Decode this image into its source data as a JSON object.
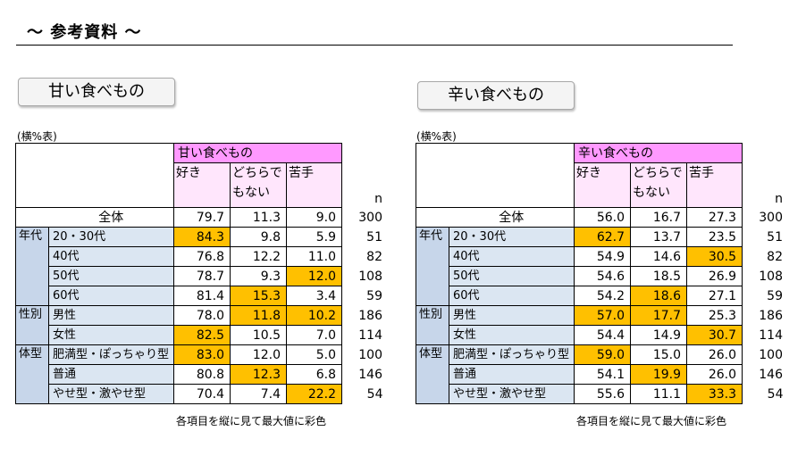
{
  "page": {
    "title": "〜 参考資料 〜",
    "note_label": "(横%表)",
    "caption": "各項目を縦に見て最大値に彩色",
    "n_label": "n"
  },
  "tables": [
    {
      "button": "甘い食べもの",
      "header": "甘い食べもの",
      "col1": "好き",
      "col2": "どちらで",
      "col2b": "もない",
      "col3": "苦手",
      "total": {
        "label": "全体",
        "v1": "79.7",
        "v2": "11.3",
        "v3": "9.0",
        "n": "300"
      },
      "groups": [
        {
          "label": "年代",
          "rows": [
            {
              "label": "20・30代",
              "v1": "84.3",
              "v2": "9.8",
              "v3": "5.9",
              "n": "51",
              "hl": [
                1
              ]
            },
            {
              "label": "40代",
              "v1": "76.8",
              "v2": "12.2",
              "v3": "11.0",
              "n": "82",
              "hl": []
            },
            {
              "label": "50代",
              "v1": "78.7",
              "v2": "9.3",
              "v3": "12.0",
              "n": "108",
              "hl": [
                3
              ]
            },
            {
              "label": "60代",
              "v1": "81.4",
              "v2": "15.3",
              "v3": "3.4",
              "n": "59",
              "hl": [
                2
              ]
            }
          ]
        },
        {
          "label": "性別",
          "rows": [
            {
              "label": "男性",
              "v1": "78.0",
              "v2": "11.8",
              "v3": "10.2",
              "n": "186",
              "hl": [
                2,
                3
              ]
            },
            {
              "label": "女性",
              "v1": "82.5",
              "v2": "10.5",
              "v3": "7.0",
              "n": "114",
              "hl": [
                1
              ]
            }
          ]
        },
        {
          "label": "体型",
          "rows": [
            {
              "label": "肥満型・ぽっちゃり型",
              "v1": "83.0",
              "v2": "12.0",
              "v3": "5.0",
              "n": "100",
              "hl": [
                1
              ]
            },
            {
              "label": "普通",
              "v1": "80.8",
              "v2": "12.3",
              "v3": "6.8",
              "n": "146",
              "hl": [
                2
              ]
            },
            {
              "label": "やせ型・激やせ型",
              "v1": "70.4",
              "v2": "7.4",
              "v3": "22.2",
              "n": "54",
              "hl": [
                3
              ]
            }
          ]
        }
      ]
    },
    {
      "button": "辛い食べもの",
      "header": "辛い食べもの",
      "col1": "好き",
      "col2": "どちらで",
      "col2b": "もない",
      "col3": "苦手",
      "total": {
        "label": "全体",
        "v1": "56.0",
        "v2": "16.7",
        "v3": "27.3",
        "n": "300"
      },
      "groups": [
        {
          "label": "年代",
          "rows": [
            {
              "label": "20・30代",
              "v1": "62.7",
              "v2": "13.7",
              "v3": "23.5",
              "n": "51",
              "hl": [
                1
              ]
            },
            {
              "label": "40代",
              "v1": "54.9",
              "v2": "14.6",
              "v3": "30.5",
              "n": "82",
              "hl": [
                3
              ]
            },
            {
              "label": "50代",
              "v1": "54.6",
              "v2": "18.5",
              "v3": "26.9",
              "n": "108",
              "hl": []
            },
            {
              "label": "60代",
              "v1": "54.2",
              "v2": "18.6",
              "v3": "27.1",
              "n": "59",
              "hl": [
                2
              ]
            }
          ]
        },
        {
          "label": "性別",
          "rows": [
            {
              "label": "男性",
              "v1": "57.0",
              "v2": "17.7",
              "v3": "25.3",
              "n": "186",
              "hl": [
                1,
                2
              ]
            },
            {
              "label": "女性",
              "v1": "54.4",
              "v2": "14.9",
              "v3": "30.7",
              "n": "114",
              "hl": [
                3
              ]
            }
          ]
        },
        {
          "label": "体型",
          "rows": [
            {
              "label": "肥満型・ぽっちゃり型",
              "v1": "59.0",
              "v2": "15.0",
              "v3": "26.0",
              "n": "100",
              "hl": [
                1
              ]
            },
            {
              "label": "普通",
              "v1": "54.1",
              "v2": "19.9",
              "v3": "26.0",
              "n": "146",
              "hl": [
                2
              ]
            },
            {
              "label": "やせ型・激やせ型",
              "v1": "55.6",
              "v2": "11.1",
              "v3": "33.3",
              "n": "54",
              "hl": [
                3
              ]
            }
          ]
        }
      ]
    }
  ],
  "colors": {
    "highlight": "#ffc000",
    "header": "#ff99ff",
    "colhead": "#ffe6fc",
    "group": "#c7d6ea",
    "subrow": "#dbe6f2"
  }
}
